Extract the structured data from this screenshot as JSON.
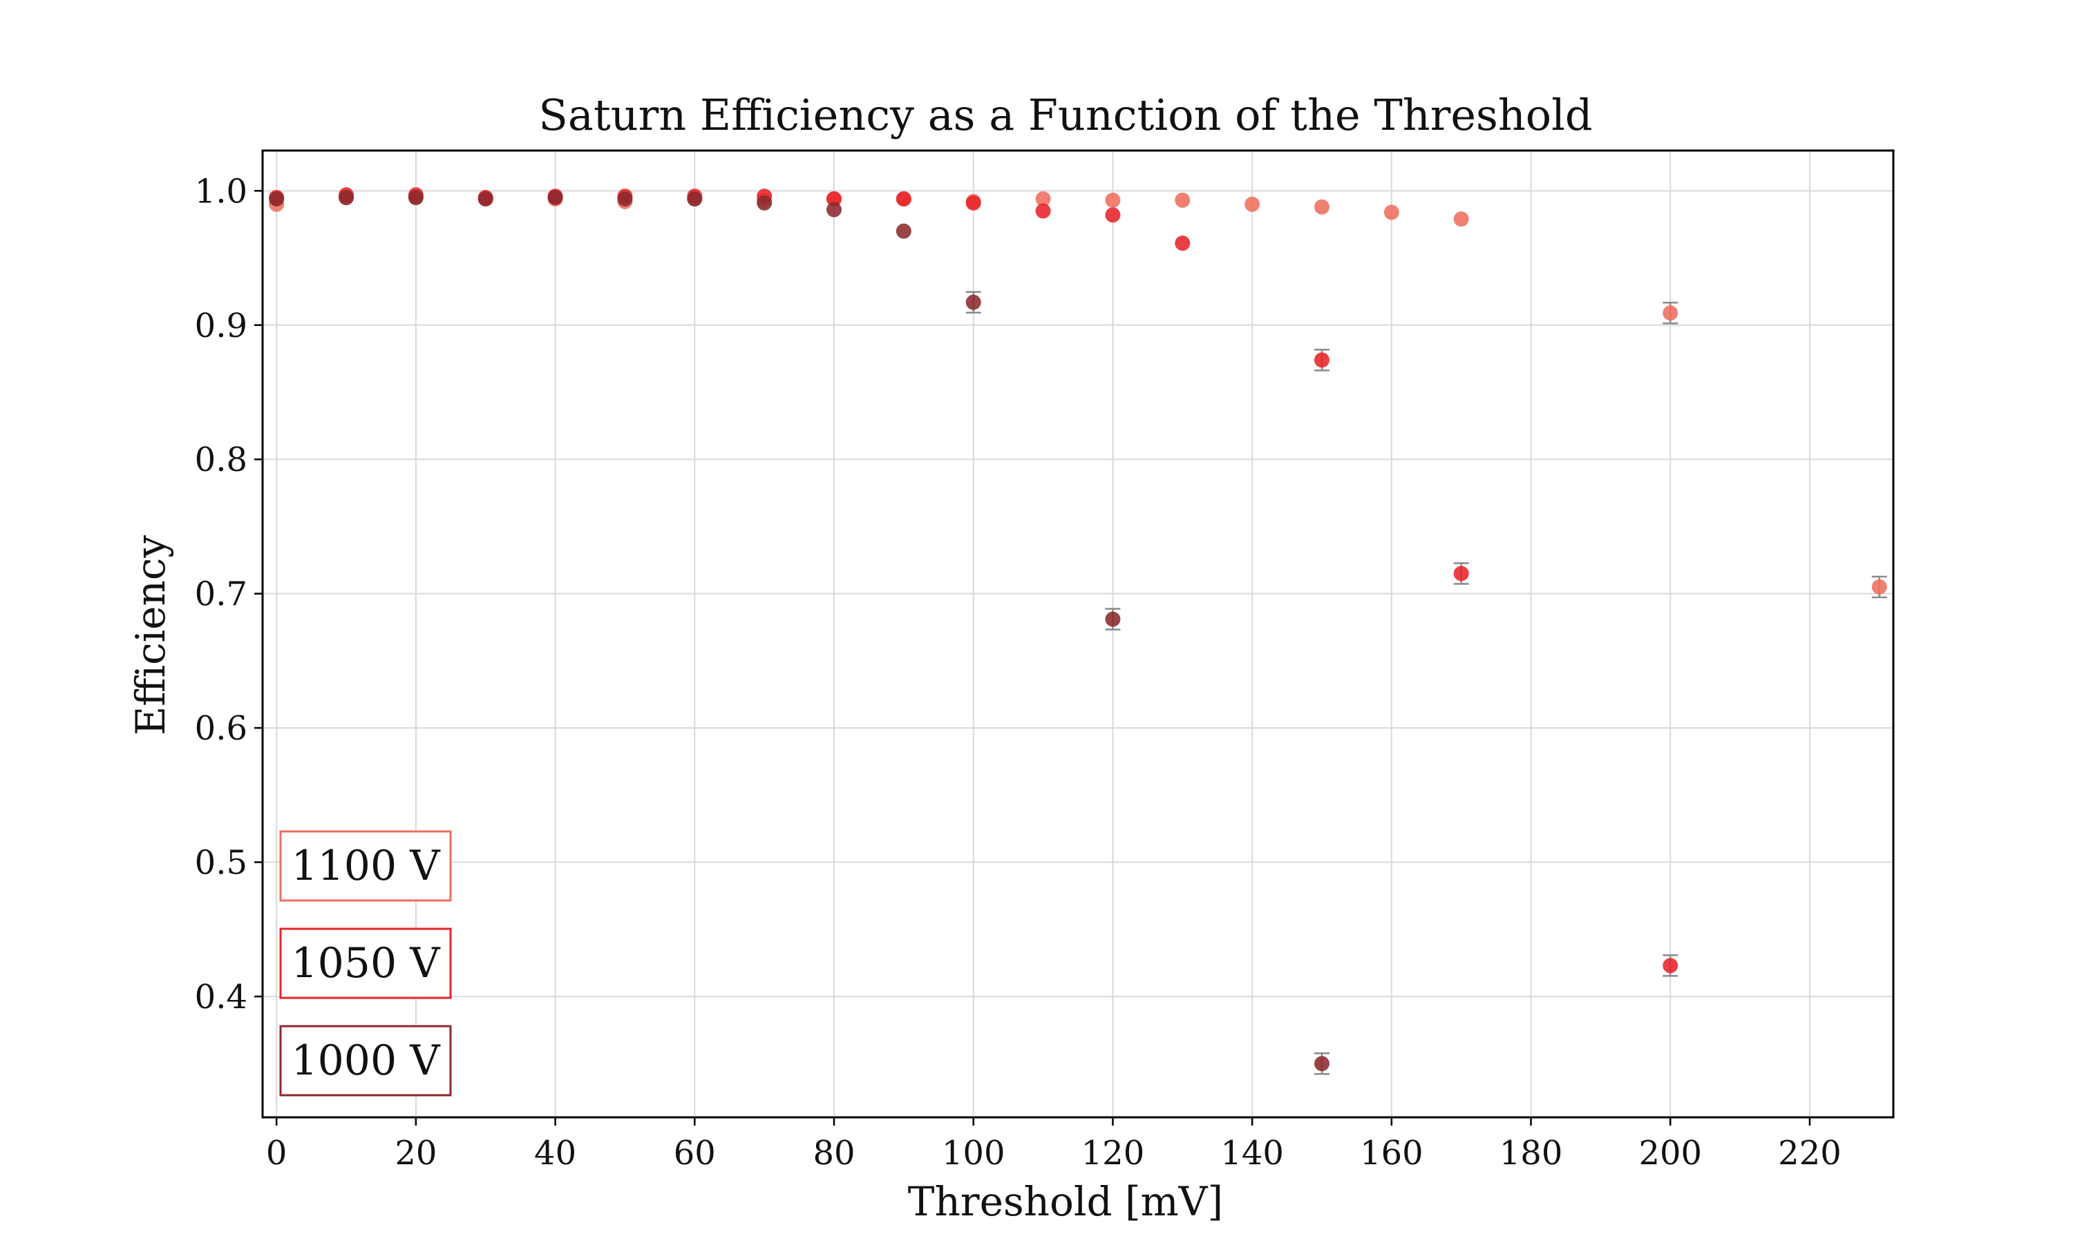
{
  "chart_data": {
    "type": "scatter",
    "title": "Saturn Efficiency as a Function of the Threshold",
    "xlabel": "Threshold [mV]",
    "ylabel": "Efficiency",
    "xlim": [
      -2,
      232
    ],
    "ylim": [
      0.31,
      1.03
    ],
    "xticks": [
      0,
      20,
      40,
      60,
      80,
      100,
      120,
      140,
      160,
      180,
      200,
      220
    ],
    "yticks": [
      0.4,
      0.5,
      0.6,
      0.7,
      0.8,
      0.9,
      1.0
    ],
    "xtick_labels": [
      "0",
      "20",
      "40",
      "60",
      "80",
      "100",
      "120",
      "140",
      "160",
      "180",
      "200",
      "220"
    ],
    "ytick_labels": [
      "0.4",
      "0.5",
      "0.6",
      "0.7",
      "0.8",
      "0.9",
      "1.0"
    ],
    "grid": true,
    "legend_position": "bottom-left",
    "series": [
      {
        "name": "1100 V",
        "color": "#ee6f5f",
        "points": [
          {
            "x": 0,
            "y": 0.99
          },
          {
            "x": 10,
            "y": 0.995
          },
          {
            "x": 20,
            "y": 0.995
          },
          {
            "x": 30,
            "y": 0.994
          },
          {
            "x": 40,
            "y": 0.994
          },
          {
            "x": 50,
            "y": 0.992
          },
          {
            "x": 60,
            "y": 0.994
          },
          {
            "x": 70,
            "y": 0.993
          },
          {
            "x": 80,
            "y": 0.994
          },
          {
            "x": 90,
            "y": 0.994
          },
          {
            "x": 100,
            "y": 0.992
          },
          {
            "x": 110,
            "y": 0.994
          },
          {
            "x": 120,
            "y": 0.993
          },
          {
            "x": 130,
            "y": 0.993
          },
          {
            "x": 140,
            "y": 0.99
          },
          {
            "x": 150,
            "y": 0.988
          },
          {
            "x": 160,
            "y": 0.984
          },
          {
            "x": 170,
            "y": 0.979
          },
          {
            "x": 200,
            "y": 0.909
          },
          {
            "x": 230,
            "y": 0.705
          }
        ]
      },
      {
        "name": "1050 V",
        "color": "#e8232a",
        "points": [
          {
            "x": 0,
            "y": 0.995
          },
          {
            "x": 10,
            "y": 0.997
          },
          {
            "x": 20,
            "y": 0.997
          },
          {
            "x": 30,
            "y": 0.995
          },
          {
            "x": 40,
            "y": 0.996
          },
          {
            "x": 50,
            "y": 0.996
          },
          {
            "x": 60,
            "y": 0.996
          },
          {
            "x": 70,
            "y": 0.996
          },
          {
            "x": 80,
            "y": 0.994
          },
          {
            "x": 90,
            "y": 0.994
          },
          {
            "x": 100,
            "y": 0.991
          },
          {
            "x": 110,
            "y": 0.985
          },
          {
            "x": 120,
            "y": 0.982
          },
          {
            "x": 130,
            "y": 0.961
          },
          {
            "x": 150,
            "y": 0.874
          },
          {
            "x": 170,
            "y": 0.715
          },
          {
            "x": 200,
            "y": 0.423
          }
        ]
      },
      {
        "name": "1000 V",
        "color": "#8b2a2e",
        "points": [
          {
            "x": 0,
            "y": 0.994
          },
          {
            "x": 10,
            "y": 0.995
          },
          {
            "x": 20,
            "y": 0.995
          },
          {
            "x": 30,
            "y": 0.994
          },
          {
            "x": 40,
            "y": 0.995
          },
          {
            "x": 50,
            "y": 0.994
          },
          {
            "x": 60,
            "y": 0.994
          },
          {
            "x": 70,
            "y": 0.991
          },
          {
            "x": 80,
            "y": 0.986
          },
          {
            "x": 90,
            "y": 0.97
          },
          {
            "x": 100,
            "y": 0.917
          },
          {
            "x": 120,
            "y": 0.681
          },
          {
            "x": 150,
            "y": 0.35
          }
        ]
      }
    ]
  }
}
